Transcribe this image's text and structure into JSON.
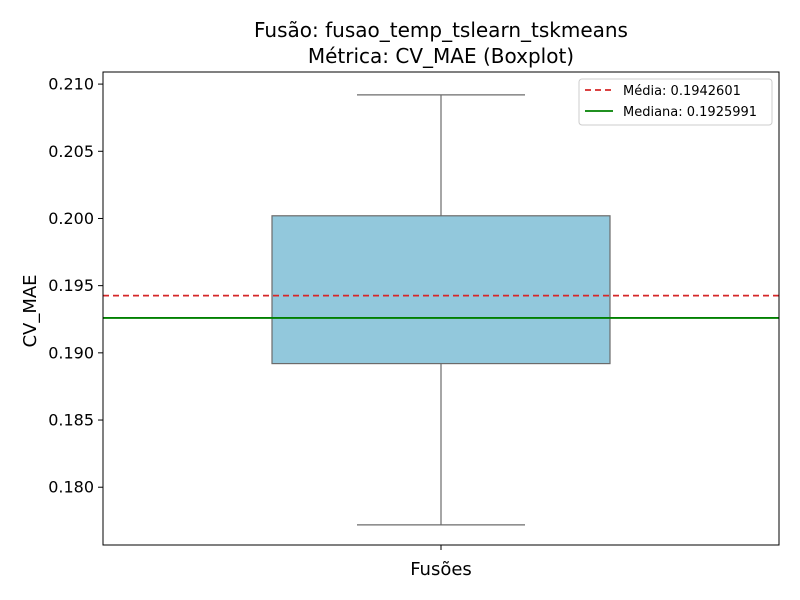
{
  "chart_data": {
    "type": "box",
    "title_line1": "Fusão: fusao_temp_tslearn_tskmeans",
    "title_line2": "Métrica: CV_MAE (Boxplot)",
    "xlabel": "Fusões",
    "ylabel": "CV_MAE",
    "ylim": [
      0.1757,
      0.2109
    ],
    "yticks": [
      0.18,
      0.185,
      0.19,
      0.195,
      0.2,
      0.205,
      0.21
    ],
    "ytick_labels": [
      "0.180",
      "0.185",
      "0.190",
      "0.195",
      "0.200",
      "0.205",
      "0.210"
    ],
    "grid": false,
    "legend_position": "top-right",
    "box": {
      "whisker_low": 0.1772,
      "q1": 0.1892,
      "median": 0.1926,
      "q3": 0.2002,
      "whisker_high": 0.2092
    },
    "reference_lines": [
      {
        "label": "Média: 0.1942601",
        "value": 0.1942601,
        "color": "#d62728",
        "style": "dashed"
      },
      {
        "label": "Mediana: 0.1925991",
        "value": 0.1925991,
        "color": "#008000",
        "style": "solid"
      }
    ],
    "colors": {
      "box_fill": "#92c8dc",
      "box_edge": "#6b6b6b"
    }
  }
}
